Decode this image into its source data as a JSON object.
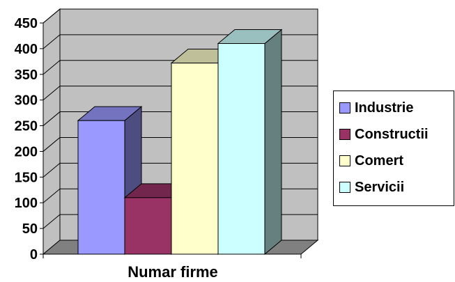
{
  "chart_data": {
    "type": "bar",
    "categories": [
      "Numar firme"
    ],
    "xlabel": "Numar firme",
    "ylim": [
      0,
      450
    ],
    "yticks": [
      0,
      50,
      100,
      150,
      200,
      250,
      300,
      350,
      400,
      450
    ],
    "grid": true,
    "legend": "right",
    "series": [
      {
        "name": "Industrie",
        "values": [
          260
        ],
        "color": "#9999ff"
      },
      {
        "name": "Constructii",
        "values": [
          110
        ],
        "color": "#993366"
      },
      {
        "name": "Comert",
        "values": [
          372
        ],
        "color": "#ffffcc"
      },
      {
        "name": "Servicii",
        "values": [
          410
        ],
        "color": "#ccffff"
      }
    ]
  }
}
